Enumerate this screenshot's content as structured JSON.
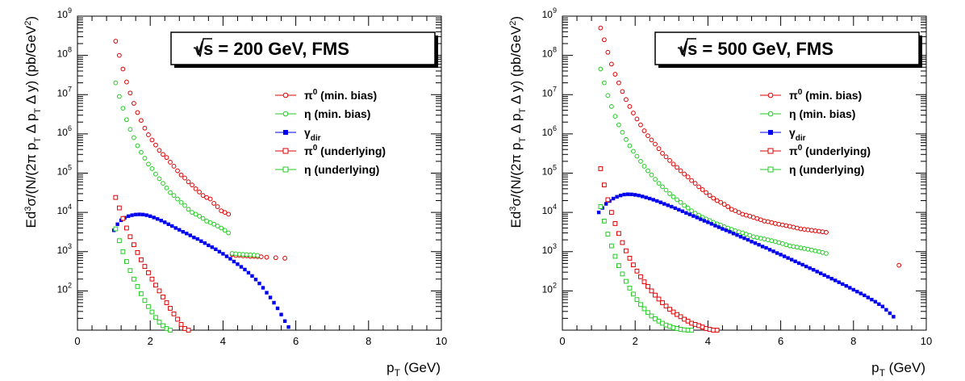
{
  "chart_data": [
    {
      "type": "scatter",
      "title": "√s = 200 GeV,   FMS",
      "xlabel": "pT (GeV)",
      "ylabel": "Ed3σ/(N/(2π pT Δ pT Δ y) (pb/GeV2)",
      "xlim": [
        0,
        10
      ],
      "ylim": [
        10,
        1000000000
      ],
      "log_y": true,
      "x_ticks": [
        "0",
        "2",
        "4",
        "6",
        "8",
        "10"
      ],
      "y_ticks": [
        "10^2",
        "10^3",
        "10^4",
        "10^5",
        "10^6",
        "10^7",
        "10^8",
        "10^9"
      ],
      "legend_position": "top-right",
      "series": [
        {
          "name": "π0 (min. bias)",
          "color": "#dd0000",
          "marker": "open-circle",
          "x": [
            1.05,
            1.15,
            1.25,
            1.35,
            1.45,
            1.55,
            1.65,
            1.75,
            1.85,
            1.95,
            2.05,
            2.15,
            2.25,
            2.35,
            2.45,
            2.55,
            2.65,
            2.75,
            2.85,
            2.95,
            3.05,
            3.15,
            3.25,
            3.35,
            3.45,
            3.55,
            3.65,
            3.75,
            3.85,
            3.95,
            4.05,
            4.15,
            4.25,
            4.35,
            4.45,
            4.55,
            4.65,
            4.75,
            4.85,
            4.95,
            5.05,
            5.2,
            5.45,
            5.7
          ],
          "y": [
            230000000,
            100000000,
            45000000,
            21000000,
            11000000,
            6000000,
            3500000,
            2200000,
            1400000,
            950000,
            700000,
            520000,
            380000,
            300000,
            250000,
            190000,
            150000,
            115000,
            90000,
            75000,
            60000,
            50000,
            40000,
            33000,
            27000,
            24000,
            22000,
            17000,
            14000,
            11000,
            10000,
            9000,
            850,
            800,
            800,
            780,
            780,
            760,
            760,
            750,
            740,
            720,
            700,
            680
          ]
        },
        {
          "name": "η (min. bias)",
          "color": "#22cc22",
          "marker": "open-circle",
          "x": [
            1.05,
            1.15,
            1.25,
            1.35,
            1.45,
            1.55,
            1.65,
            1.75,
            1.85,
            1.95,
            2.05,
            2.15,
            2.25,
            2.35,
            2.45,
            2.55,
            2.65,
            2.75,
            2.85,
            2.95,
            3.05,
            3.15,
            3.25,
            3.35,
            3.45,
            3.55,
            3.65,
            3.75,
            3.85,
            3.95,
            4.05,
            4.15,
            4.25,
            4.35,
            4.45,
            4.55,
            4.65,
            4.75,
            4.85,
            4.95
          ],
          "y": [
            20000000,
            9000000,
            4500000,
            2300000,
            1300000,
            800000,
            500000,
            340000,
            240000,
            170000,
            130000,
            95000,
            72000,
            55000,
            42000,
            32000,
            27000,
            22000,
            18000,
            15000,
            12000,
            10000,
            9000,
            8000,
            7000,
            6000,
            5500,
            5000,
            4500,
            4000,
            3500,
            3000,
            900,
            880,
            860,
            850,
            840,
            830,
            820,
            800
          ]
        },
        {
          "name": "γdir",
          "color": "#0000ee",
          "marker": "filled-square",
          "x": [
            1.0,
            1.1,
            1.2,
            1.3,
            1.4,
            1.5,
            1.6,
            1.7,
            1.8,
            1.9,
            2.0,
            2.1,
            2.2,
            2.3,
            2.4,
            2.5,
            2.6,
            2.7,
            2.8,
            2.9,
            3.0,
            3.1,
            3.2,
            3.3,
            3.4,
            3.5,
            3.6,
            3.7,
            3.8,
            3.9,
            4.0,
            4.1,
            4.2,
            4.3,
            4.4,
            4.5,
            4.6,
            4.7,
            4.8,
            4.9,
            5.0,
            5.1,
            5.2,
            5.3,
            5.4,
            5.5,
            5.6,
            5.7,
            5.8
          ],
          "y": [
            3500,
            5000,
            6300,
            7300,
            8000,
            8500,
            8800,
            8900,
            8800,
            8500,
            8000,
            7400,
            6800,
            6200,
            5600,
            5000,
            4500,
            4000,
            3600,
            3200,
            2900,
            2600,
            2300,
            2100,
            1850,
            1650,
            1450,
            1300,
            1150,
            1000,
            880,
            760,
            660,
            560,
            480,
            410,
            350,
            290,
            240,
            195,
            155,
            120,
            90,
            68,
            50,
            36,
            25,
            17,
            12
          ]
        },
        {
          "name": "π0 (underlying)",
          "color": "#dd0000",
          "marker": "open-square",
          "x": [
            1.05,
            1.15,
            1.25,
            1.35,
            1.45,
            1.55,
            1.65,
            1.75,
            1.85,
            1.95,
            2.05,
            2.15,
            2.25,
            2.35,
            2.45,
            2.55,
            2.65,
            2.75,
            2.85,
            2.95,
            3.05
          ],
          "y": [
            24000,
            13000,
            7000,
            4000,
            2400,
            1500,
            950,
            620,
            420,
            290,
            200,
            140,
            100,
            70,
            50,
            36,
            26,
            19,
            14,
            11,
            10
          ]
        },
        {
          "name": "η (underlying)",
          "color": "#22cc22",
          "marker": "open-square",
          "x": [
            1.05,
            1.15,
            1.25,
            1.35,
            1.45,
            1.55,
            1.65,
            1.75,
            1.85,
            1.95,
            2.05,
            2.15,
            2.25,
            2.35,
            2.45,
            2.55
          ],
          "y": [
            3800,
            1900,
            1000,
            560,
            330,
            200,
            130,
            85,
            57,
            40,
            29,
            21,
            16,
            13,
            11,
            10
          ]
        }
      ]
    },
    {
      "type": "scatter",
      "title": "√s = 500 GeV,   FMS",
      "xlabel": "pT (GeV)",
      "ylabel": "Ed3σ/(N/(2π pT Δ pT Δ y) (pb/GeV2)",
      "xlim": [
        0,
        10
      ],
      "ylim": [
        10,
        1000000000
      ],
      "log_y": true,
      "x_ticks": [
        "0",
        "2",
        "4",
        "6",
        "8",
        "10"
      ],
      "y_ticks": [
        "10^2",
        "10^3",
        "10^4",
        "10^5",
        "10^6",
        "10^7",
        "10^8",
        "10^9"
      ],
      "legend_position": "top-right",
      "series": [
        {
          "name": "π0 (min. bias)",
          "color": "#dd0000",
          "marker": "open-circle",
          "x": [
            1.05,
            1.15,
            1.25,
            1.35,
            1.45,
            1.55,
            1.65,
            1.75,
            1.85,
            1.95,
            2.05,
            2.15,
            2.25,
            2.35,
            2.45,
            2.55,
            2.65,
            2.75,
            2.85,
            2.95,
            3.05,
            3.15,
            3.25,
            3.35,
            3.45,
            3.55,
            3.65,
            3.75,
            3.85,
            3.95,
            4.05,
            4.15,
            4.25,
            4.35,
            4.45,
            4.55,
            4.65,
            4.75,
            4.85,
            4.95,
            5.05,
            5.15,
            5.25,
            5.35,
            5.45,
            5.55,
            5.65,
            5.75,
            5.85,
            5.95,
            6.05,
            6.15,
            6.25,
            6.35,
            6.45,
            6.55,
            6.65,
            6.75,
            6.85,
            6.95,
            7.05,
            7.15,
            7.25,
            9.25
          ],
          "y": [
            500000000,
            250000000,
            120000000,
            60000000,
            33000000,
            20000000,
            12000000,
            7500000,
            5000000,
            3400000,
            2400000,
            1700000,
            1200000,
            900000,
            700000,
            550000,
            420000,
            320000,
            260000,
            210000,
            170000,
            140000,
            115000,
            95000,
            80000,
            65000,
            55000,
            45000,
            38000,
            32000,
            27000,
            23000,
            20000,
            18000,
            16000,
            14000,
            12000,
            11000,
            10000,
            9000,
            8500,
            8000,
            7500,
            7000,
            6500,
            6000,
            5800,
            5500,
            5200,
            5000,
            4800,
            4600,
            4400,
            4200,
            4000,
            3800,
            3700,
            3600,
            3500,
            3400,
            3300,
            3200,
            3100,
            450
          ]
        },
        {
          "name": "η (min. bias)",
          "color": "#22cc22",
          "marker": "open-circle",
          "x": [
            1.05,
            1.15,
            1.25,
            1.35,
            1.45,
            1.55,
            1.65,
            1.75,
            1.85,
            1.95,
            2.05,
            2.15,
            2.25,
            2.35,
            2.45,
            2.55,
            2.65,
            2.75,
            2.85,
            2.95,
            3.05,
            3.15,
            3.25,
            3.35,
            3.45,
            3.55,
            3.65,
            3.75,
            3.85,
            3.95,
            4.05,
            4.15,
            4.25,
            4.35,
            4.45,
            4.55,
            4.65,
            4.75,
            4.85,
            4.95,
            5.05,
            5.15,
            5.25,
            5.35,
            5.45,
            5.55,
            5.65,
            5.75,
            5.85,
            5.95,
            6.05,
            6.15,
            6.25,
            6.35,
            6.45,
            6.55,
            6.65,
            6.75,
            6.85,
            6.95,
            7.05,
            7.15,
            7.25
          ],
          "y": [
            45000000,
            20000000,
            9500000,
            5000000,
            2800000,
            1700000,
            1100000,
            720000,
            500000,
            360000,
            270000,
            200000,
            150000,
            115000,
            90000,
            70000,
            55000,
            45000,
            37000,
            30000,
            25000,
            21000,
            18000,
            15000,
            13000,
            11000,
            9500,
            8500,
            7500,
            6800,
            6200,
            5600,
            5100,
            4700,
            4300,
            4000,
            3700,
            3400,
            3200,
            3000,
            2800,
            2600,
            2400,
            2300,
            2200,
            2100,
            2000,
            1900,
            1800,
            1700,
            1600,
            1500,
            1400,
            1350,
            1300,
            1250,
            1200,
            1150,
            1100,
            1050,
            1000,
            950,
            900
          ]
        },
        {
          "name": "γdir",
          "color": "#0000ee",
          "marker": "filled-square",
          "x": [
            1.0,
            1.1,
            1.2,
            1.3,
            1.4,
            1.5,
            1.6,
            1.7,
            1.8,
            1.9,
            2.0,
            2.1,
            2.2,
            2.3,
            2.4,
            2.5,
            2.6,
            2.7,
            2.8,
            2.9,
            3.0,
            3.1,
            3.2,
            3.3,
            3.4,
            3.5,
            3.6,
            3.7,
            3.8,
            3.9,
            4.0,
            4.1,
            4.2,
            4.3,
            4.4,
            4.5,
            4.6,
            4.7,
            4.8,
            4.9,
            5.0,
            5.1,
            5.2,
            5.3,
            5.4,
            5.5,
            5.6,
            5.7,
            5.8,
            5.9,
            6.0,
            6.1,
            6.2,
            6.3,
            6.4,
            6.5,
            6.6,
            6.7,
            6.8,
            6.9,
            7.0,
            7.1,
            7.2,
            7.3,
            7.4,
            7.5,
            7.6,
            7.7,
            7.8,
            7.9,
            8.0,
            8.1,
            8.2,
            8.3,
            8.4,
            8.5,
            8.6,
            8.7,
            8.8,
            8.9,
            9.0,
            9.1
          ],
          "y": [
            10000,
            13000,
            16500,
            19500,
            22500,
            25000,
            27000,
            28500,
            29000,
            28800,
            28000,
            27000,
            25500,
            24000,
            22500,
            21000,
            19500,
            18000,
            16500,
            15200,
            14000,
            12800,
            11700,
            10700,
            9700,
            8900,
            8100,
            7400,
            6700,
            6100,
            5600,
            5100,
            4600,
            4200,
            3800,
            3500,
            3200,
            2900,
            2650,
            2400,
            2200,
            2000,
            1800,
            1650,
            1500,
            1350,
            1250,
            1120,
            1020,
            920,
            840,
            760,
            690,
            625,
            565,
            510,
            465,
            420,
            380,
            345,
            310,
            280,
            252,
            228,
            205,
            185,
            166,
            149,
            134,
            120,
            107,
            96,
            86,
            77,
            68,
            60,
            53,
            46,
            40,
            33,
            27,
            22
          ]
        },
        {
          "name": "π0 (underlying)",
          "color": "#dd0000",
          "marker": "open-square",
          "x": [
            1.05,
            1.15,
            1.25,
            1.35,
            1.45,
            1.55,
            1.65,
            1.75,
            1.85,
            1.95,
            2.05,
            2.15,
            2.25,
            2.35,
            2.45,
            2.55,
            2.65,
            2.75,
            2.85,
            2.95,
            3.05,
            3.15,
            3.25,
            3.35,
            3.45,
            3.55,
            3.65,
            3.75,
            3.85,
            3.95,
            4.05,
            4.15,
            4.25
          ],
          "y": [
            130000,
            50000,
            21000,
            10000,
            5200,
            2900,
            1700,
            1050,
            680,
            460,
            320,
            230,
            170,
            130,
            100,
            78,
            62,
            50,
            41,
            34,
            29,
            25,
            22,
            19,
            17,
            15,
            14,
            13,
            12,
            11,
            10.5,
            10,
            10
          ]
        },
        {
          "name": "η (underlying)",
          "color": "#22cc22",
          "marker": "open-square",
          "x": [
            1.05,
            1.15,
            1.25,
            1.35,
            1.45,
            1.55,
            1.65,
            1.75,
            1.85,
            1.95,
            2.05,
            2.15,
            2.25,
            2.35,
            2.45,
            2.55,
            2.65,
            2.75,
            2.85,
            2.95,
            3.05,
            3.15,
            3.25,
            3.35,
            3.45,
            3.55
          ],
          "y": [
            14000,
            6000,
            2800,
            1400,
            760,
            440,
            270,
            175,
            118,
            83,
            60,
            45,
            35,
            28,
            23,
            19.5,
            17,
            15,
            13.5,
            12.5,
            11.5,
            11,
            10.5,
            10.2,
            10,
            10
          ]
        }
      ]
    }
  ]
}
